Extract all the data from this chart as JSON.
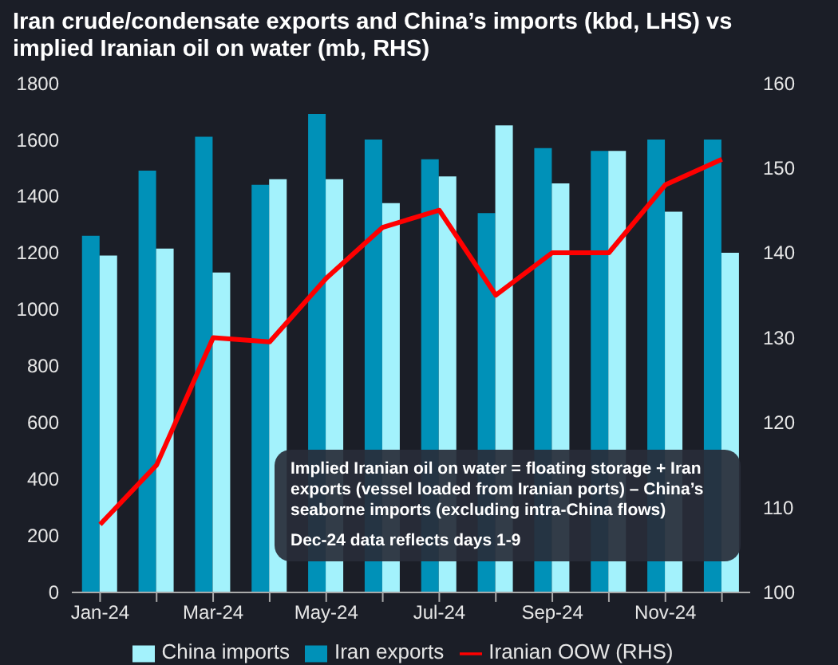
{
  "chart_data": {
    "type": "bar",
    "title": "Iran crude/condensate exports and China’s imports (kbd, LHS) vs implied Iranian oil on water (mb, RHS)",
    "categories": [
      "Jan-24",
      null,
      "Mar-24",
      null,
      "May-24",
      null,
      "Jul-24",
      null,
      "Sep-24",
      null,
      "Nov-24",
      null
    ],
    "series": [
      {
        "name": "Iran exports",
        "color": "#0091b8",
        "values": [
          1260,
          1490,
          1610,
          1440,
          1690,
          1600,
          1530,
          1340,
          1570,
          1560,
          1600,
          1600
        ]
      },
      {
        "name": "China imports",
        "color": "#a3f2fc",
        "values": [
          1190,
          1215,
          1130,
          1460,
          1460,
          1375,
          1470,
          1650,
          1445,
          1560,
          1345,
          1200
        ]
      },
      {
        "name": "Iranian OOW (RHS)",
        "type": "line",
        "axis": "y2",
        "color": "#ff0000",
        "values": [
          108,
          115,
          130,
          129.5,
          137,
          143,
          145,
          135,
          140,
          140,
          148,
          151
        ]
      }
    ],
    "ylim": [
      0,
      1800
    ],
    "yticks": [
      0,
      200,
      400,
      600,
      800,
      1000,
      1200,
      1400,
      1600,
      1800
    ],
    "y2lim": [
      100,
      160
    ],
    "y2ticks": [
      100,
      110,
      120,
      130,
      140,
      150,
      160
    ],
    "grid": false,
    "legend": "bottom",
    "marker": "none",
    "annotations": [
      "Implied Iranian oil on water = floating storage + Iran exports (vessel loaded from Iranian ports) – China’s seaborne imports (excluding intra-China flows)",
      "Dec-24 data reflects days 1-9"
    ]
  }
}
